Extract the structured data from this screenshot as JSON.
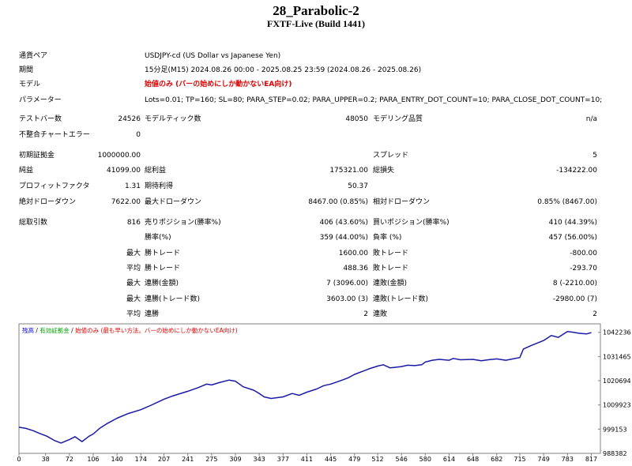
{
  "header": {
    "title": "28_Parabolic-2",
    "subtitle": "FXTF-Live (Build 1441)"
  },
  "info": {
    "pair_label": "通貨ペア",
    "pair_value": "USDJPY-cd (US Dollar vs Japanese Yen)",
    "period_label": "期間",
    "period_value": "15分足(M15) 2024.08.26 00:00 - 2025.08.25 23:59 (2024.08.26 - 2025.08.26)",
    "model_label": "モデル",
    "model_value": "始値のみ (バーの始めにしか動かないEA向け)",
    "params_label": "パラメーター",
    "params_value": "Lots=0.01; TP=160; SL=80; PARA_STEP=0.02; PARA_UPPER=0.2; PARA_ENTRY_DOT_COUNT=10; PARA_CLOSE_DOT_COUNT=10;"
  },
  "stats": {
    "bars_label": "テストバー数",
    "bars_value": "24526",
    "ticks_label": "モデルティック数",
    "ticks_value": "48050",
    "quality_label": "モデリング品質",
    "quality_value": "n/a",
    "mismatch_label": "不整合チャートエラー",
    "mismatch_value": "0",
    "deposit_label": "初期証拠金",
    "deposit_value": "1000000.00",
    "spread_label": "スプレッド",
    "spread_value": "5",
    "net_label": "純益",
    "net_value": "41099.00",
    "gross_profit_label": "総利益",
    "gross_profit_value": "175321.00",
    "gross_loss_label": "総損失",
    "gross_loss_value": "-134222.00",
    "pf_label": "プロフィットファクタ",
    "pf_value": "1.31",
    "expected_label": "期待利得",
    "expected_value": "50.37",
    "abs_dd_label": "絶対ドローダウン",
    "abs_dd_value": "7622.00",
    "max_dd_label": "最大ドローダウン",
    "max_dd_value": "8467.00 (0.85%)",
    "rel_dd_label": "相対ドローダウン",
    "rel_dd_value": "0.85% (8467.00)",
    "trades_label": "総取引数",
    "trades_value": "816",
    "short_label": "売りポジション(勝率%)",
    "short_value": "406 (43.60%)",
    "long_label": "買いポジション(勝率%)",
    "long_value": "410 (44.39%)",
    "winrate_label": "勝率(%)",
    "winrate_value": "359 (44.00%)",
    "lossrate_label": "負率 (%)",
    "lossrate_value": "457 (56.00%)",
    "max_prefix": "最大",
    "avg_prefix": "平均",
    "win_trade_label": "勝トレード",
    "max_win_value": "1600.00",
    "loss_trade_label": "敗トレード",
    "max_loss_value": "-800.00",
    "avg_win_value": "488.36",
    "avg_loss_value": "-293.70",
    "cw_amount_label": "連勝(金額)",
    "cw_amount_value": "7 (3096.00)",
    "cl_amount_label": "連敗(金額)",
    "cl_amount_value": "8 (-2210.00)",
    "cw_trades_label": "連勝(トレード数)",
    "cw_trades_value": "3603.00 (3)",
    "cl_trades_label": "連敗(トレード数)",
    "cl_trades_value": "-2980.00 (7)",
    "avg_cw_label": "連勝",
    "avg_cw_value": "2",
    "avg_cl_label": "連敗",
    "avg_cl_value": "2"
  },
  "chart_data": {
    "type": "line",
    "legend": {
      "balance": "残高",
      "equity": "有効証拠金",
      "note": "始値のみ (最も早い方法。バーの始めにしか動かないEA向け)",
      "sep": "/",
      "colors": {
        "balance": "#0000c8",
        "equity": "#00a000",
        "note": "#e00000"
      }
    },
    "line_color": "#1a1aa8",
    "xlim": [
      0,
      830
    ],
    "ylim": [
      988382,
      1046000
    ],
    "x_ticks": [
      "0",
      "38",
      "72",
      "106",
      "140",
      "174",
      "207",
      "241",
      "275",
      "309",
      "343",
      "377",
      "411",
      "445",
      "479",
      "512",
      "546",
      "580",
      "614",
      "648",
      "682",
      "715",
      "749",
      "783",
      "817"
    ],
    "y_ticks": [
      "1042236",
      "1031465",
      "1020694",
      "1009923",
      "999153",
      "988382"
    ],
    "y_tick_values": [
      1042236,
      1031465,
      1020694,
      1009923,
      999153,
      988382
    ],
    "series": [
      {
        "x": [
          0,
          10,
          20,
          30,
          40,
          50,
          60,
          72,
          80,
          90,
          100,
          106,
          115,
          125,
          140,
          155,
          174,
          190,
          207,
          220,
          241,
          255,
          268,
          275,
          285,
          300,
          309,
          320,
          335,
          343,
          350,
          360,
          377,
          390,
          400,
          411,
          425,
          435,
          445,
          460,
          470,
          479,
          490,
          500,
          512,
          520,
          530,
          546,
          555,
          565,
          575,
          580,
          590,
          600,
          614,
          620,
          630,
          648,
          660,
          670,
          682,
          695,
          705,
          715,
          720,
          730,
          749,
          760,
          770,
          783,
          790,
          800,
          810,
          817
        ],
        "y": [
          1000000,
          999500,
          998500,
          997200,
          996000,
          994200,
          993000,
          994500,
          995800,
          993600,
          996000,
          997000,
          999500,
          1001500,
          1004000,
          1006000,
          1007800,
          1010000,
          1012500,
          1014000,
          1016000,
          1017500,
          1019200,
          1018800,
          1019800,
          1021000,
          1020500,
          1018000,
          1016500,
          1015000,
          1013500,
          1012800,
          1013500,
          1015000,
          1014200,
          1015600,
          1017000,
          1018500,
          1019200,
          1020800,
          1022000,
          1023500,
          1024800,
          1026000,
          1027200,
          1027800,
          1026400,
          1027000,
          1027600,
          1027400,
          1027800,
          1029000,
          1029800,
          1030200,
          1029800,
          1030600,
          1030000,
          1030200,
          1029600,
          1030000,
          1030400,
          1029800,
          1030400,
          1031000,
          1034800,
          1036200,
          1038600,
          1040800,
          1040000,
          1042600,
          1042300,
          1041800,
          1041500,
          1042100
        ]
      }
    ]
  }
}
